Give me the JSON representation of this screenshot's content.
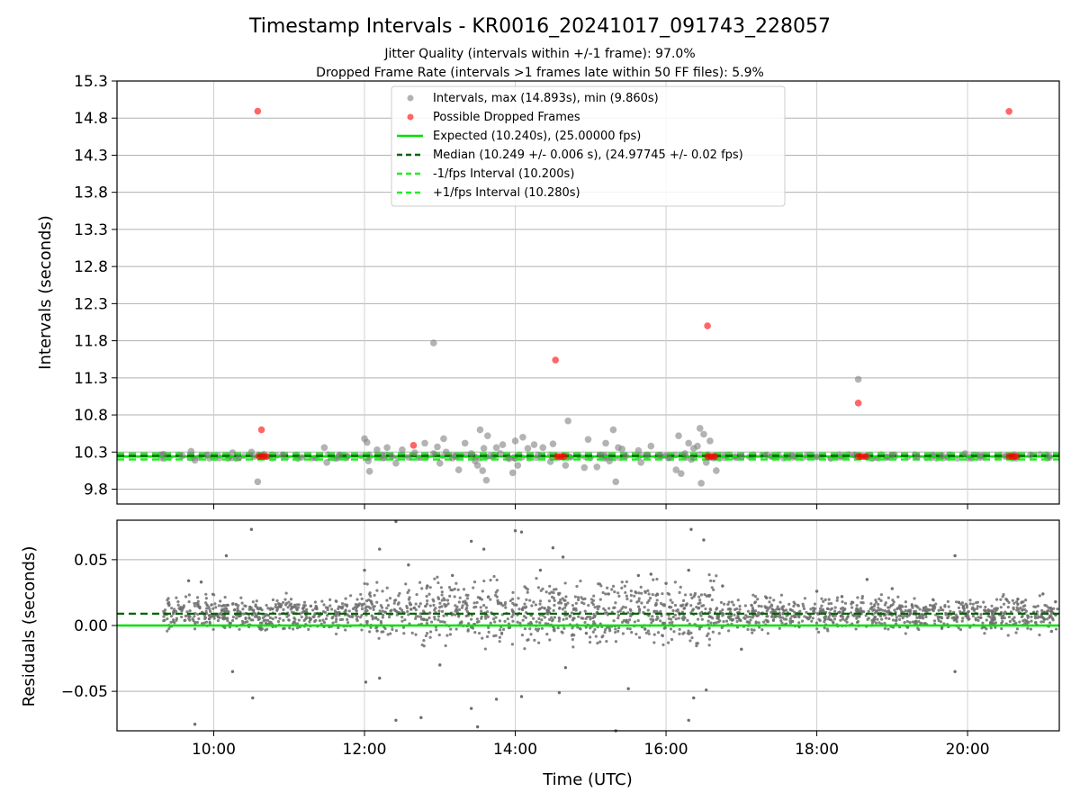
{
  "figure": {
    "title": "Timestamp Intervals - KR0016_20241017_091743_228057",
    "subtitle_1": "Jitter Quality (intervals within +/-1 frame): 97.0%",
    "subtitle_2": "Dropped Frame Rate (intervals >1 frames late within 50 FF files): 5.9%"
  },
  "colors": {
    "intervals": "#808080",
    "dropped": "#ff0000",
    "expected": "#00e000",
    "median": "#006400",
    "fps_band": "#22ee22",
    "grid": "#b0b0b0",
    "residuals": "#6e6e6e"
  },
  "chart_data": [
    {
      "type": "scatter",
      "ylabel": "Intervals (seconds)",
      "ylim": [
        9.6,
        15.3
      ],
      "yticks": [
        "9.8",
        "10.3",
        "10.8",
        "11.3",
        "11.8",
        "12.3",
        "12.8",
        "13.3",
        "13.8",
        "14.3",
        "14.8",
        "15.3"
      ],
      "xlim": [
        "08:43",
        "21:13"
      ],
      "grid": true,
      "legend_position": "top-center",
      "legend": [
        "Intervals, max (14.893s), min (9.860s)",
        "Possible Dropped Frames",
        "Expected (10.240s), (25.00000 fps)",
        "Median (10.249 +/- 0.006 s), (24.97745 +/- 0.02 fps)",
        "-1/fps Interval (10.200s)",
        "+1/fps Interval (10.280s)"
      ],
      "lines": {
        "expected": 10.24,
        "median": 10.249,
        "minus_fps": 10.2,
        "plus_fps": 10.28
      },
      "series": [
        {
          "name": "Intervals, max (14.893s), min (9.860s)",
          "points": [
            [
              "09:20",
              10.27
            ],
            [
              "09:35",
              10.25
            ],
            [
              "09:42",
              10.31
            ],
            [
              "09:45",
              10.19
            ],
            [
              "09:55",
              10.26
            ],
            [
              "10:15",
              10.29
            ],
            [
              "10:20",
              10.22
            ],
            [
              "10:30",
              10.3
            ],
            [
              "10:32",
              10.24
            ],
            [
              "10:35",
              9.9
            ],
            [
              "10:40",
              10.27
            ],
            [
              "10:55",
              10.26
            ],
            [
              "11:10",
              10.23
            ],
            [
              "11:28",
              10.36
            ],
            [
              "11:30",
              10.16
            ],
            [
              "11:40",
              10.26
            ],
            [
              "12:00",
              10.48
            ],
            [
              "12:02",
              10.43
            ],
            [
              "12:03",
              10.18
            ],
            [
              "12:04",
              10.04
            ],
            [
              "12:10",
              10.33
            ],
            [
              "12:15",
              10.22
            ],
            [
              "12:18",
              10.36
            ],
            [
              "12:22",
              10.24
            ],
            [
              "12:25",
              10.15
            ],
            [
              "12:30",
              10.33
            ],
            [
              "12:35",
              10.23
            ],
            [
              "12:40",
              10.29
            ],
            [
              "12:48",
              10.42
            ],
            [
              "12:55",
              10.28
            ],
            [
              "12:55",
              11.77
            ],
            [
              "12:58",
              10.37
            ],
            [
              "13:00",
              10.15
            ],
            [
              "13:03",
              10.48
            ],
            [
              "13:05",
              10.3
            ],
            [
              "13:10",
              10.22
            ],
            [
              "13:15",
              10.06
            ],
            [
              "13:20",
              10.42
            ],
            [
              "13:25",
              10.28
            ],
            [
              "13:28",
              10.18
            ],
            [
              "13:30",
              10.12
            ],
            [
              "13:32",
              10.6
            ],
            [
              "13:34",
              10.05
            ],
            [
              "13:35",
              10.35
            ],
            [
              "13:37",
              9.92
            ],
            [
              "13:38",
              10.52
            ],
            [
              "13:40",
              10.25
            ],
            [
              "13:45",
              10.36
            ],
            [
              "13:48",
              10.28
            ],
            [
              "13:50",
              10.4
            ],
            [
              "13:55",
              10.21
            ],
            [
              "13:58",
              10.02
            ],
            [
              "14:00",
              10.45
            ],
            [
              "14:02",
              10.12
            ],
            [
              "14:06",
              10.5
            ],
            [
              "14:10",
              10.35
            ],
            [
              "14:15",
              10.4
            ],
            [
              "14:18",
              10.26
            ],
            [
              "14:22",
              10.36
            ],
            [
              "14:28",
              10.17
            ],
            [
              "14:30",
              10.41
            ],
            [
              "14:40",
              10.12
            ],
            [
              "14:42",
              10.72
            ],
            [
              "14:55",
              10.09
            ],
            [
              "14:58",
              10.47
            ],
            [
              "15:05",
              10.1
            ],
            [
              "15:08",
              10.26
            ],
            [
              "15:12",
              10.42
            ],
            [
              "15:15",
              10.18
            ],
            [
              "15:18",
              10.6
            ],
            [
              "15:20",
              9.9
            ],
            [
              "15:22",
              10.36
            ],
            [
              "15:25",
              10.34
            ],
            [
              "15:28",
              10.25
            ],
            [
              "15:38",
              10.32
            ],
            [
              "15:40",
              10.16
            ],
            [
              "15:45",
              10.26
            ],
            [
              "15:48",
              10.38
            ],
            [
              "15:55",
              10.26
            ],
            [
              "16:02",
              10.22
            ],
            [
              "16:08",
              10.06
            ],
            [
              "16:10",
              10.52
            ],
            [
              "16:12",
              10.01
            ],
            [
              "16:15",
              10.28
            ],
            [
              "16:18",
              10.42
            ],
            [
              "16:20",
              10.2
            ],
            [
              "16:22",
              10.35
            ],
            [
              "16:25",
              10.38
            ],
            [
              "16:27",
              10.62
            ],
            [
              "16:28",
              9.88
            ],
            [
              "16:30",
              10.54
            ],
            [
              "16:32",
              10.16
            ],
            [
              "16:35",
              10.45
            ],
            [
              "16:38",
              10.22
            ],
            [
              "16:40",
              10.05
            ],
            [
              "17:00",
              10.24
            ],
            [
              "17:20",
              10.26
            ],
            [
              "17:40",
              10.25
            ],
            [
              "18:00",
              10.24
            ],
            [
              "18:30",
              10.26
            ],
            [
              "18:33",
              11.28
            ],
            [
              "18:40",
              10.24
            ],
            [
              "19:00",
              10.26
            ],
            [
              "19:20",
              10.24
            ],
            [
              "19:40",
              10.25
            ],
            [
              "19:58",
              10.28
            ],
            [
              "20:10",
              10.25
            ],
            [
              "20:30",
              10.24
            ],
            [
              "20:50",
              10.26
            ],
            [
              "21:05",
              10.25
            ]
          ]
        },
        {
          "name": "Possible Dropped Frames",
          "points": [
            [
              "10:35",
              14.893
            ],
            [
              "10:38",
              10.6
            ],
            [
              "10:36",
              10.24
            ],
            [
              "10:38",
              10.24
            ],
            [
              "10:40",
              10.24
            ],
            [
              "10:42",
              10.24
            ],
            [
              "12:39",
              10.39
            ],
            [
              "14:32",
              11.54
            ],
            [
              "14:33",
              10.24
            ],
            [
              "14:35",
              10.24
            ],
            [
              "14:37",
              10.24
            ],
            [
              "14:39",
              10.24
            ],
            [
              "16:33",
              12.0
            ],
            [
              "16:33",
              10.24
            ],
            [
              "16:35",
              10.24
            ],
            [
              "16:37",
              10.24
            ],
            [
              "16:39",
              10.24
            ],
            [
              "18:33",
              10.96
            ],
            [
              "18:33",
              10.24
            ],
            [
              "18:35",
              10.24
            ],
            [
              "18:37",
              10.24
            ],
            [
              "18:39",
              10.24
            ],
            [
              "20:33",
              14.89
            ],
            [
              "20:33",
              10.24
            ],
            [
              "20:35",
              10.24
            ],
            [
              "20:37",
              10.24
            ],
            [
              "20:39",
              10.24
            ]
          ]
        }
      ]
    },
    {
      "type": "scatter",
      "xlabel": "Time (UTC)",
      "ylabel": "Residuals (seconds)",
      "ylim": [
        -0.08,
        0.08
      ],
      "yticks": [
        "−0.05",
        "0.00",
        "0.05"
      ],
      "ytick_values": [
        -0.05,
        0.0,
        0.05
      ],
      "xlim": [
        "08:43",
        "21:13"
      ],
      "xticks": [
        "10:00",
        "12:00",
        "14:00",
        "16:00",
        "18:00",
        "20:00"
      ],
      "grid": true,
      "lines": {
        "expected": 0.0,
        "median": 0.009
      },
      "series": [
        {
          "name": "Residuals",
          "points": [
            [
              "09:40",
              0.034
            ],
            [
              "09:45",
              -0.075
            ],
            [
              "09:50",
              0.033
            ],
            [
              "10:10",
              0.053
            ],
            [
              "10:15",
              -0.035
            ],
            [
              "10:30",
              0.073
            ],
            [
              "10:31",
              -0.055
            ],
            [
              "12:00",
              0.042
            ],
            [
              "12:01",
              -0.043
            ],
            [
              "12:12",
              0.058
            ],
            [
              "12:12",
              -0.04
            ],
            [
              "12:25",
              0.079
            ],
            [
              "12:25",
              -0.072
            ],
            [
              "12:35",
              0.046
            ],
            [
              "12:45",
              -0.07
            ],
            [
              "12:50",
              0.03
            ],
            [
              "13:00",
              -0.03
            ],
            [
              "13:10",
              0.038
            ],
            [
              "13:25",
              -0.063
            ],
            [
              "13:25",
              0.064
            ],
            [
              "13:30",
              -0.077
            ],
            [
              "13:35",
              0.058
            ],
            [
              "13:45",
              -0.056
            ],
            [
              "14:00",
              0.072
            ],
            [
              "14:05",
              0.071
            ],
            [
              "14:05",
              -0.054
            ],
            [
              "14:20",
              0.042
            ],
            [
              "14:30",
              0.059
            ],
            [
              "14:35",
              -0.051
            ],
            [
              "14:38",
              0.052
            ],
            [
              "14:40",
              -0.032
            ],
            [
              "15:20",
              -0.08
            ],
            [
              "15:30",
              -0.048
            ],
            [
              "15:38",
              0.038
            ],
            [
              "15:48",
              0.039
            ],
            [
              "16:00",
              0.032
            ],
            [
              "16:18",
              0.042
            ],
            [
              "16:18",
              -0.072
            ],
            [
              "16:20",
              0.073
            ],
            [
              "16:22",
              -0.055
            ],
            [
              "16:30",
              0.065
            ],
            [
              "16:32",
              -0.049
            ],
            [
              "16:45",
              0.03
            ],
            [
              "17:00",
              -0.018
            ],
            [
              "17:20",
              0.021
            ],
            [
              "18:00",
              0.026
            ],
            [
              "18:20",
              0.022
            ],
            [
              "18:40",
              0.035
            ],
            [
              "19:00",
              0.028
            ],
            [
              "19:50",
              0.053
            ],
            [
              "19:50",
              -0.035
            ],
            [
              "20:40",
              0.02
            ],
            [
              "21:00",
              0.024
            ],
            [
              "21:10",
              0.018
            ]
          ]
        }
      ]
    }
  ]
}
